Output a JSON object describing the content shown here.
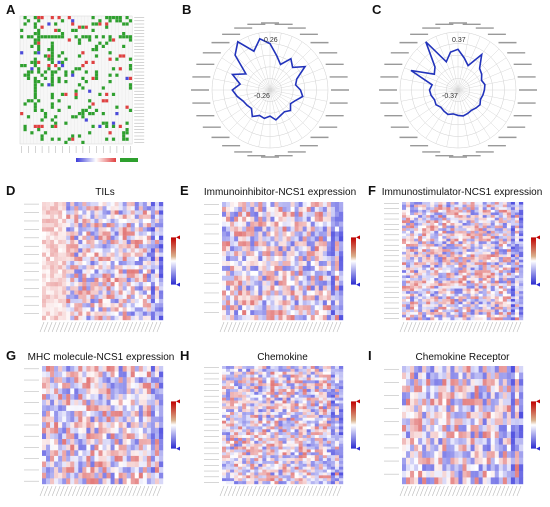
{
  "panels": [
    {
      "id": "A",
      "label": "A",
      "title": ""
    },
    {
      "id": "B",
      "label": "B",
      "title": ""
    },
    {
      "id": "C",
      "label": "C",
      "title": ""
    },
    {
      "id": "D",
      "label": "D",
      "title": "TILs"
    },
    {
      "id": "E",
      "label": "E",
      "title": "Immunoinhibitor-NCS1 expression"
    },
    {
      "id": "F",
      "label": "F",
      "title": "Immunostimulator-NCS1 expression"
    },
    {
      "id": "G",
      "label": "G",
      "title": "MHC molecule-NCS1 expression"
    },
    {
      "id": "H",
      "label": "H",
      "title": "Chemokine"
    },
    {
      "id": "I",
      "label": "I",
      "title": "Chemokine Receptor"
    }
  ],
  "chart_data": [
    {
      "id": "A",
      "type": "heatmap",
      "title": "",
      "colorbar": {
        "colors": [
          "#3b3bd9",
          "#ffffff",
          "#e04040"
        ],
        "green": "#2ea02e"
      },
      "grid": {
        "rows": 40,
        "cols": 33
      }
    },
    {
      "id": "B",
      "type": "radar",
      "ring_labels": [
        "0.26",
        "-0.26"
      ],
      "spokes": 32,
      "values": [
        0.18,
        0.1,
        0.05,
        0.12,
        0.08,
        0.15,
        0.06,
        0.04,
        0.07,
        0.09,
        0.05,
        0.03,
        0.06,
        0.04,
        0.05,
        0.07,
        0.04,
        0.06,
        0.05,
        0.08,
        0.04,
        0.05,
        0.06,
        0.09,
        0.12,
        0.07,
        0.14,
        0.06,
        0.2,
        0.26,
        0.15,
        0.22
      ],
      "color": "#2233bb"
    },
    {
      "id": "C",
      "type": "radar",
      "ring_labels": [
        "0.37",
        "-0.37"
      ],
      "spokes": 32,
      "values": [
        0.2,
        0.12,
        0.06,
        0.22,
        0.1,
        0.08,
        0.05,
        0.07,
        0.06,
        0.05,
        0.04,
        0.06,
        0.05,
        0.04,
        0.05,
        0.06,
        0.05,
        0.04,
        0.06,
        0.05,
        0.04,
        0.06,
        0.05,
        0.07,
        0.08,
        0.06,
        0.3,
        0.08,
        0.12,
        0.37,
        0.1,
        0.18
      ],
      "color": "#2233bb"
    },
    {
      "id": "D",
      "type": "heatmap",
      "title": "TILs",
      "grid": {
        "rows": 28,
        "cols": 30
      }
    },
    {
      "id": "E",
      "type": "heatmap",
      "title": "Immunoinhibitor-NCS1 expression",
      "grid": {
        "rows": 24,
        "cols": 30
      }
    },
    {
      "id": "F",
      "type": "heatmap",
      "title": "Immunostimulator-NCS1 expression",
      "grid": {
        "rows": 45,
        "cols": 30
      }
    },
    {
      "id": "G",
      "type": "heatmap",
      "title": "MHC molecule-NCS1 expression",
      "grid": {
        "rows": 21,
        "cols": 30
      }
    },
    {
      "id": "H",
      "type": "heatmap",
      "title": "Chemokine",
      "grid": {
        "rows": 41,
        "cols": 30
      }
    },
    {
      "id": "I",
      "type": "heatmap",
      "title": "Chemokine Receptor",
      "grid": {
        "rows": 18,
        "cols": 30
      }
    }
  ]
}
